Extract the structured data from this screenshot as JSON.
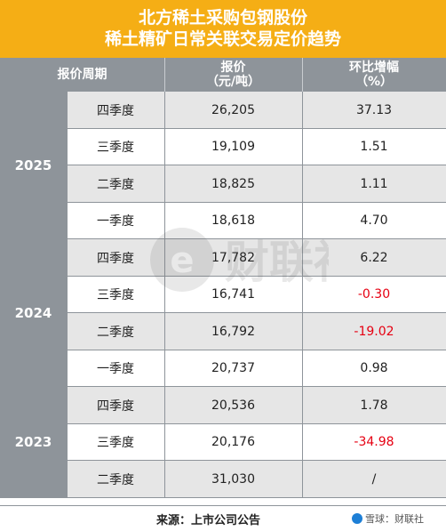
{
  "title": {
    "line1": "北方稀土采购包钢股份",
    "line2": "稀土精矿日常关联交易定价趋势"
  },
  "header": {
    "period": "报价周期",
    "price_line1": "报价",
    "price_line2": "（元/吨）",
    "change_line1": "环比增幅",
    "change_line2": "（%）"
  },
  "years": [
    "2025",
    "2024",
    "2023"
  ],
  "rows": [
    {
      "quarter": "四季度",
      "price": "26,205",
      "change": "37.13"
    },
    {
      "quarter": "三季度",
      "price": "19,109",
      "change": "1.51"
    },
    {
      "quarter": "二季度",
      "price": "18,825",
      "change": "1.11"
    },
    {
      "quarter": "一季度",
      "price": "18,618",
      "change": "4.70"
    },
    {
      "quarter": "四季度",
      "price": "17,782",
      "change": "6.22"
    },
    {
      "quarter": "三季度",
      "price": "16,741",
      "change": "-0.30"
    },
    {
      "quarter": "二季度",
      "price": "16,792",
      "change": "-19.02"
    },
    {
      "quarter": "一季度",
      "price": "20,737",
      "change": "0.98"
    },
    {
      "quarter": "四季度",
      "price": "20,536",
      "change": "1.78"
    },
    {
      "quarter": "三季度",
      "price": "20,176",
      "change": "-34.98"
    },
    {
      "quarter": "二季度",
      "price": "31,030",
      "change": "/"
    }
  ],
  "chart_data": {
    "type": "table",
    "title": "北方稀土采购包钢股份稀土精矿日常关联交易定价趋势",
    "columns": [
      "报价周期",
      "报价（元/吨）",
      "环比增幅（%）"
    ],
    "categories": [
      "2025四季度",
      "2025三季度",
      "2025二季度",
      "2025一季度",
      "2024四季度",
      "2024三季度",
      "2024二季度",
      "2024一季度",
      "2023四季度",
      "2023三季度",
      "2023二季度"
    ],
    "series": [
      {
        "name": "报价（元/吨）",
        "values": [
          26205,
          19109,
          18825,
          18618,
          17782,
          16741,
          16792,
          20737,
          20536,
          20176,
          31030
        ]
      },
      {
        "name": "环比增幅（%）",
        "values": [
          37.13,
          1.51,
          1.11,
          4.7,
          6.22,
          -0.3,
          -19.02,
          0.98,
          1.78,
          -34.98,
          null
        ]
      }
    ]
  },
  "watermark": {
    "text": "财联社"
  },
  "footer": {
    "source": "来源：上市公司公告",
    "brand": "雪球：财联社"
  },
  "colors": {
    "title_bg": "#f5ae15",
    "header_bg": "#8e949a",
    "negative": "#e60012",
    "row_shade": "#e6e6e6"
  }
}
